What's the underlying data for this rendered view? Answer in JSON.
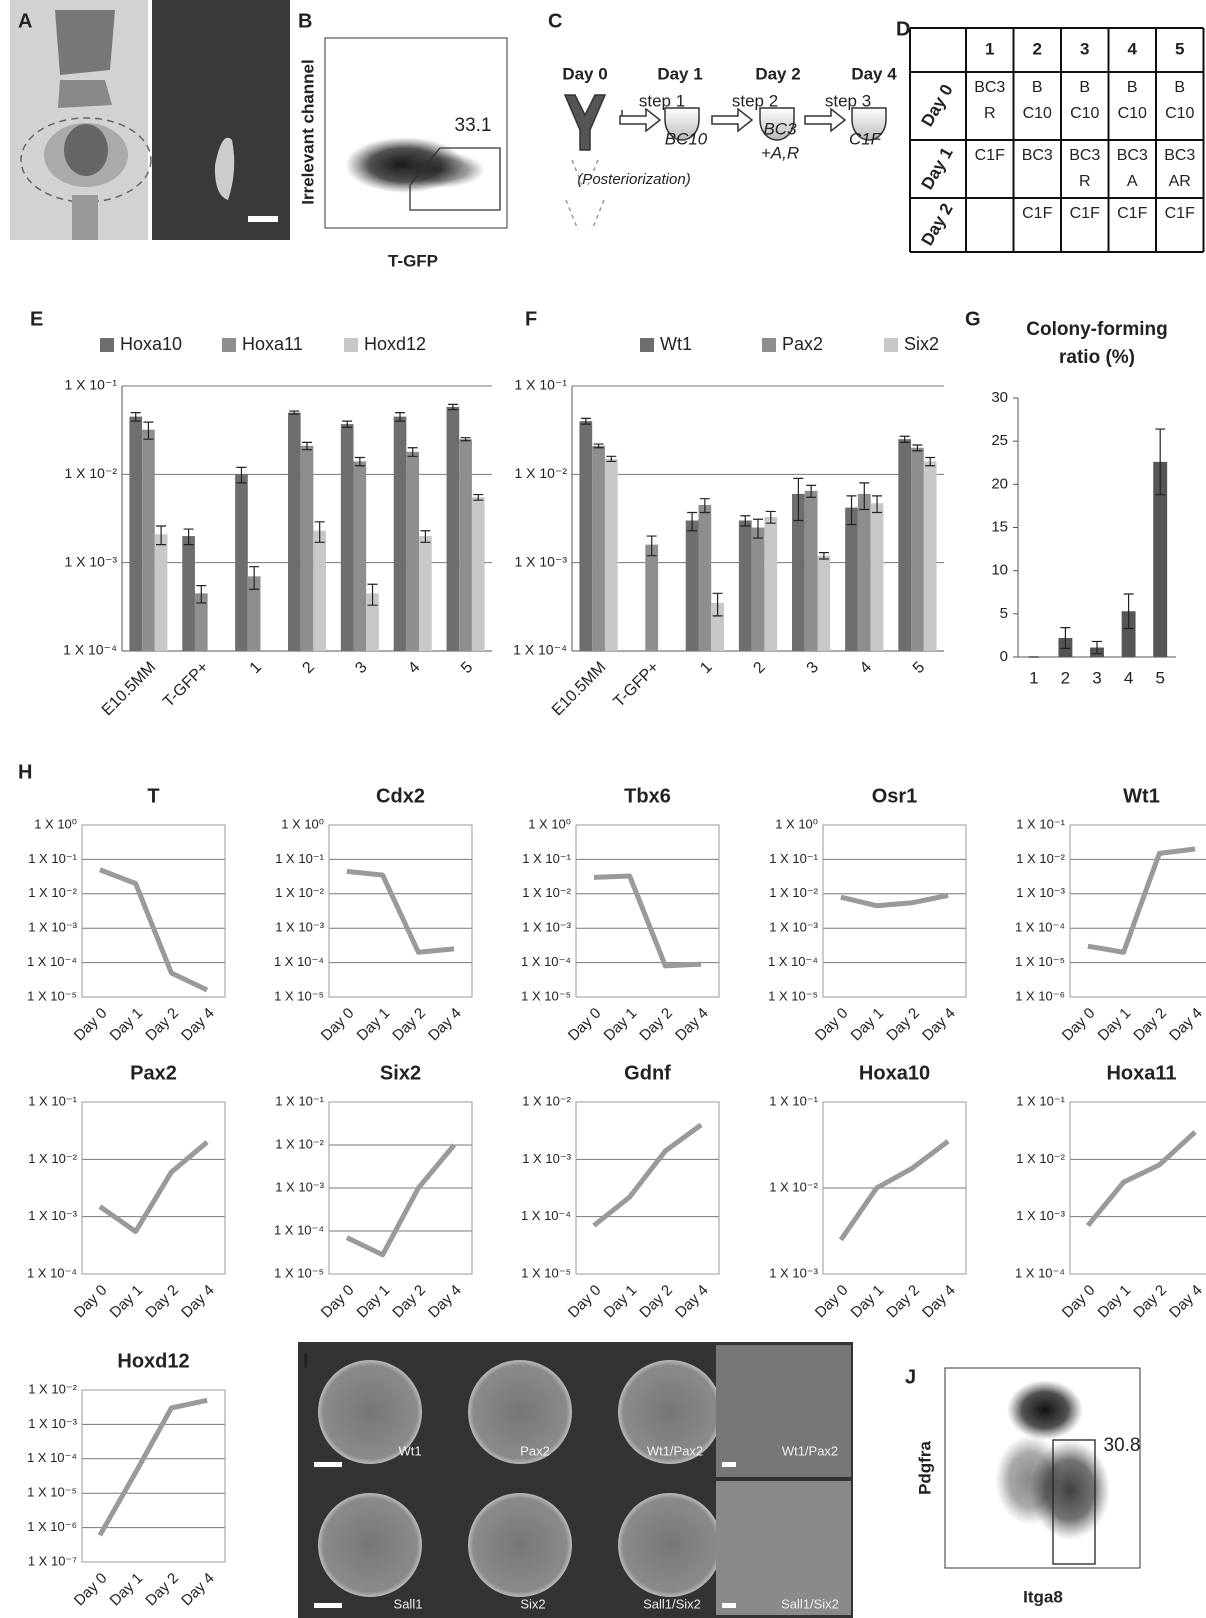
{
  "panel_labels": [
    "A",
    "B",
    "C",
    "D",
    "E",
    "F",
    "G",
    "H",
    "I",
    "J"
  ],
  "flow_b": {
    "y_label": "Irrelevant channel",
    "x_label": "T-GFP",
    "gate_value": 33.1
  },
  "protocol": {
    "days": [
      "Day 0",
      "Day 1",
      "Day 2",
      "Day 4"
    ],
    "steps": [
      "step 1",
      "step 2",
      "step 3"
    ],
    "media": [
      [
        "BC10"
      ],
      [
        "BC3",
        "+A,R"
      ],
      [
        "C1F"
      ]
    ],
    "note": "(Posteriorization)"
  },
  "table": {
    "header": [
      "1",
      "2",
      "3",
      "4",
      "5"
    ],
    "rows": [
      {
        "label": "Day 0",
        "cells": [
          [
            "BC3",
            "R"
          ],
          [
            "B",
            "C10"
          ],
          [
            "B",
            "C10"
          ],
          [
            "B",
            "C10"
          ],
          [
            "B",
            "C10"
          ]
        ]
      },
      {
        "label": "Day 1",
        "cells": [
          [
            "C1F"
          ],
          [
            "BC3"
          ],
          [
            "BC3",
            "R"
          ],
          [
            "BC3",
            "A"
          ],
          [
            "BC3",
            "AR"
          ]
        ]
      },
      {
        "label": "Day 2",
        "cells": [
          [],
          [
            "C1F"
          ],
          [
            "C1F"
          ],
          [
            "C1F"
          ],
          [
            "C1F"
          ]
        ]
      }
    ]
  },
  "chart_data": [
    {
      "type": "bar",
      "log_scale": true,
      "grid": true,
      "categories": [
        "E10.5MM",
        "T-GFP+",
        "1",
        "2",
        "3",
        "4",
        "5"
      ],
      "series": [
        {
          "name": "Hoxa10",
          "color": "#6e6e6e",
          "values": [
            0.045,
            0.002,
            0.01,
            0.05,
            0.037,
            0.045,
            0.058
          ],
          "errors": [
            0.005,
            0.0004,
            0.002,
            0.002,
            0.003,
            0.005,
            0.004
          ]
        },
        {
          "name": "Hoxa11",
          "color": "#8e8e8e",
          "values": [
            0.032,
            0.00045,
            0.0007,
            0.021,
            0.014,
            0.018,
            0.025
          ],
          "errors": [
            0.007,
            0.0001,
            0.0002,
            0.002,
            0.0015,
            0.002,
            0.001
          ]
        },
        {
          "name": "Hoxd12",
          "color": "#c8c8c8",
          "values": [
            0.0021,
            null,
            null,
            0.0023,
            0.00045,
            0.002,
            0.0055
          ],
          "errors": [
            0.0005,
            null,
            null,
            0.0006,
            0.00012,
            0.0003,
            0.0004
          ]
        }
      ],
      "ylim": [
        0.0001,
        0.1
      ],
      "yticks": [
        {
          "value": 0.0001,
          "label": "1 X 10⁻⁴"
        },
        {
          "value": 0.001,
          "label": "1 X 10⁻³"
        },
        {
          "value": 0.01,
          "label": "1 X 10⁻²"
        },
        {
          "value": 0.1,
          "label": "1 X 10⁻¹"
        }
      ]
    },
    {
      "type": "bar",
      "log_scale": true,
      "grid": true,
      "categories": [
        "E10.5MM",
        "T-GFP+",
        "1",
        "2",
        "3",
        "4",
        "5"
      ],
      "series": [
        {
          "name": "Wt1",
          "color": "#6e6e6e",
          "values": [
            0.04,
            null,
            0.003,
            0.003,
            0.006,
            0.0042,
            0.025
          ],
          "errors": [
            0.003,
            null,
            0.0007,
            0.0004,
            0.003,
            0.0015,
            0.002
          ]
        },
        {
          "name": "Pax2",
          "color": "#8e8e8e",
          "values": [
            0.021,
            0.0016,
            0.0045,
            0.0025,
            0.0065,
            0.006,
            0.02
          ],
          "errors": [
            0.001,
            0.0004,
            0.0008,
            0.0006,
            0.001,
            0.002,
            0.0015
          ]
        },
        {
          "name": "Six2",
          "color": "#c8c8c8",
          "values": [
            0.015,
            null,
            0.00035,
            0.0033,
            0.0012,
            0.0047,
            0.014
          ],
          "errors": [
            0.001,
            null,
            0.0001,
            0.0005,
            0.0001,
            0.001,
            0.0015
          ]
        }
      ],
      "ylim": [
        0.0001,
        0.1
      ],
      "yticks": [
        {
          "value": 0.0001,
          "label": "1 X 10⁻⁴"
        },
        {
          "value": 0.001,
          "label": "1 X 10⁻³"
        },
        {
          "value": 0.01,
          "label": "1 X 10⁻²"
        },
        {
          "value": 0.1,
          "label": "1 X 10⁻¹"
        }
      ]
    },
    {
      "type": "bar",
      "title": [
        "Colony-forming",
        "ratio (%)"
      ],
      "color": "#555555",
      "categories": [
        "1",
        "2",
        "3",
        "4",
        "5"
      ],
      "values": [
        0,
        2.2,
        1.1,
        5.3,
        22.6
      ],
      "errors": [
        0,
        1.2,
        0.7,
        2,
        3.8
      ],
      "ylim": [
        0,
        30
      ],
      "yticks": [
        0,
        5,
        10,
        15,
        20,
        25,
        30
      ],
      "grid": false
    },
    {
      "type": "line",
      "title": "T",
      "log_scale": true,
      "grid": true,
      "color": "#9a9a9a",
      "categories": [
        "Day 0",
        "Day 1",
        "Day 2",
        "Day 4"
      ],
      "values": [
        0.05,
        0.02,
        5e-05,
        1.6e-05
      ],
      "ylim": [
        1e-05,
        1
      ],
      "yticks": [
        {
          "value": 1e-05,
          "label": "1 X 10⁻⁵"
        },
        {
          "value": 0.0001,
          "label": "1 X 10⁻⁴"
        },
        {
          "value": 0.001,
          "label": "1 X 10⁻³"
        },
        {
          "value": 0.01,
          "label": "1 X 10⁻²"
        },
        {
          "value": 0.1,
          "label": "1 X 10⁻¹"
        },
        {
          "value": 1,
          "label": "1 X 10⁰"
        }
      ]
    },
    {
      "type": "line",
      "title": "Cdx2",
      "log_scale": true,
      "grid": true,
      "color": "#9a9a9a",
      "categories": [
        "Day 0",
        "Day 1",
        "Day 2",
        "Day 4"
      ],
      "values": [
        0.045,
        0.035,
        0.0002,
        0.00025
      ],
      "ylim": [
        1e-05,
        1
      ],
      "yticks": [
        {
          "value": 1e-05,
          "label": "1 X 10⁻⁵"
        },
        {
          "value": 0.0001,
          "label": "1 X 10⁻⁴"
        },
        {
          "value": 0.001,
          "label": "1 X 10⁻³"
        },
        {
          "value": 0.01,
          "label": "1 X 10⁻²"
        },
        {
          "value": 0.1,
          "label": "1 X 10⁻¹"
        },
        {
          "value": 1,
          "label": "1 X 10⁰"
        }
      ]
    },
    {
      "type": "line",
      "title": "Tbx6",
      "log_scale": true,
      "grid": true,
      "color": "#9a9a9a",
      "categories": [
        "Day 0",
        "Day 1",
        "Day 2",
        "Day 4"
      ],
      "values": [
        0.03,
        0.033,
        8e-05,
        9e-05
      ],
      "ylim": [
        1e-05,
        1
      ],
      "yticks": [
        {
          "value": 1e-05,
          "label": "1 X 10⁻⁵"
        },
        {
          "value": 0.0001,
          "label": "1 X 10⁻⁴"
        },
        {
          "value": 0.001,
          "label": "1 X 10⁻³"
        },
        {
          "value": 0.01,
          "label": "1 X 10⁻²"
        },
        {
          "value": 0.1,
          "label": "1 X 10⁻¹"
        },
        {
          "value": 1,
          "label": "1 X 10⁰"
        }
      ]
    },
    {
      "type": "line",
      "title": "Osr1",
      "log_scale": true,
      "grid": true,
      "color": "#9a9a9a",
      "categories": [
        "Day 0",
        "Day 1",
        "Day 2",
        "Day 4"
      ],
      "values": [
        0.008,
        0.0045,
        0.0055,
        0.009
      ],
      "ylim": [
        1e-05,
        1
      ],
      "yticks": [
        {
          "value": 1e-05,
          "label": "1 X 10⁻⁵"
        },
        {
          "value": 0.0001,
          "label": "1 X 10⁻⁴"
        },
        {
          "value": 0.001,
          "label": "1 X 10⁻³"
        },
        {
          "value": 0.01,
          "label": "1 X 10⁻²"
        },
        {
          "value": 0.1,
          "label": "1 X 10⁻¹"
        },
        {
          "value": 1,
          "label": "1 X 10⁰"
        }
      ]
    },
    {
      "type": "line",
      "title": "Wt1",
      "log_scale": true,
      "grid": true,
      "color": "#9a9a9a",
      "categories": [
        "Day 0",
        "Day 1",
        "Day 2",
        "Day 4"
      ],
      "values": [
        3e-05,
        2e-05,
        0.015,
        0.02
      ],
      "ylim": [
        1e-06,
        0.1
      ],
      "yticks": [
        {
          "value": 1e-06,
          "label": "1 X 10⁻⁶"
        },
        {
          "value": 1e-05,
          "label": "1 X 10⁻⁵"
        },
        {
          "value": 0.0001,
          "label": "1 X 10⁻⁴"
        },
        {
          "value": 0.001,
          "label": "1 X 10⁻³"
        },
        {
          "value": 0.01,
          "label": "1 X 10⁻²"
        },
        {
          "value": 0.1,
          "label": "1 X 10⁻¹"
        }
      ]
    },
    {
      "type": "line",
      "title": "Pax2",
      "log_scale": true,
      "grid": true,
      "color": "#9a9a9a",
      "categories": [
        "Day 0",
        "Day 1",
        "Day 2",
        "Day 4"
      ],
      "values": [
        0.0015,
        0.00055,
        0.006,
        0.02
      ],
      "ylim": [
        0.0001,
        0.1
      ],
      "yticks": [
        {
          "value": 0.0001,
          "label": "1 X 10⁻⁴"
        },
        {
          "value": 0.001,
          "label": "1 X 10⁻³"
        },
        {
          "value": 0.01,
          "label": "1 X 10⁻²"
        },
        {
          "value": 0.1,
          "label": "1 X 10⁻¹"
        }
      ]
    },
    {
      "type": "line",
      "title": "Six2",
      "log_scale": true,
      "grid": true,
      "color": "#9a9a9a",
      "categories": [
        "Day 0",
        "Day 1",
        "Day 2",
        "Day 4"
      ],
      "values": [
        7e-05,
        2.8e-05,
        0.001,
        0.01
      ],
      "ylim": [
        1e-05,
        0.1
      ],
      "yticks": [
        {
          "value": 1e-05,
          "label": "1 X 10⁻⁵"
        },
        {
          "value": 0.0001,
          "label": "1 X 10⁻⁴"
        },
        {
          "value": 0.001,
          "label": "1 X 10⁻³"
        },
        {
          "value": 0.01,
          "label": "1 X 10⁻²"
        },
        {
          "value": 0.1,
          "label": "1 X 10⁻¹"
        }
      ]
    },
    {
      "type": "line",
      "title": "Gdnf",
      "log_scale": true,
      "grid": true,
      "color": "#9a9a9a",
      "categories": [
        "Day 0",
        "Day 1",
        "Day 2",
        "Day 4"
      ],
      "values": [
        7e-05,
        0.00022,
        0.0014,
        0.004
      ],
      "ylim": [
        1e-05,
        0.01
      ],
      "yticks": [
        {
          "value": 1e-05,
          "label": "1 X 10⁻⁵"
        },
        {
          "value": 0.0001,
          "label": "1 X 10⁻⁴"
        },
        {
          "value": 0.001,
          "label": "1 X 10⁻³"
        },
        {
          "value": 0.01,
          "label": "1 X 10⁻²"
        }
      ]
    },
    {
      "type": "line",
      "title": "Hoxa10",
      "log_scale": true,
      "grid": true,
      "color": "#9a9a9a",
      "categories": [
        "Day 0",
        "Day 1",
        "Day 2",
        "Day 4"
      ],
      "values": [
        0.0025,
        0.01,
        0.017,
        0.035
      ],
      "ylim": [
        0.001,
        0.1
      ],
      "yticks": [
        {
          "value": 0.001,
          "label": "1 X 10⁻³"
        },
        {
          "value": 0.01,
          "label": "1 X 10⁻²"
        },
        {
          "value": 0.1,
          "label": "1 X 10⁻¹"
        }
      ]
    },
    {
      "type": "line",
      "title": "Hoxa11",
      "log_scale": true,
      "grid": true,
      "color": "#9a9a9a",
      "categories": [
        "Day 0",
        "Day 1",
        "Day 2",
        "Day 4"
      ],
      "values": [
        0.0007,
        0.004,
        0.008,
        0.03
      ],
      "ylim": [
        0.0001,
        0.1
      ],
      "yticks": [
        {
          "value": 0.0001,
          "label": "1 X 10⁻⁴"
        },
        {
          "value": 0.001,
          "label": "1 X 10⁻³"
        },
        {
          "value": 0.01,
          "label": "1 X 10⁻²"
        },
        {
          "value": 0.1,
          "label": "1 X 10⁻¹"
        }
      ]
    },
    {
      "type": "line",
      "title": "Hoxd12",
      "log_scale": true,
      "grid": true,
      "color": "#9a9a9a",
      "categories": [
        "Day 0",
        "Day 1",
        "Day 2",
        "Day 4"
      ],
      "values": [
        6e-07,
        4e-05,
        0.003,
        0.005
      ],
      "ylim": [
        1e-07,
        0.01
      ],
      "yticks": [
        {
          "value": 1e-07,
          "label": "1 X 10⁻⁷"
        },
        {
          "value": 1e-06,
          "label": "1 X 10⁻⁶"
        },
        {
          "value": 1e-05,
          "label": "1 X 10⁻⁵"
        },
        {
          "value": 0.0001,
          "label": "1 X 10⁻⁴"
        },
        {
          "value": 0.001,
          "label": "1 X 10⁻³"
        },
        {
          "value": 0.01,
          "label": "1 X 10⁻²"
        }
      ]
    }
  ],
  "images_i": {
    "labels": [
      "Wt1",
      "Pax2",
      "Wt1/Pax2",
      "Wt1/Pax2",
      "Sall1",
      "Six2",
      "Sall1/Six2",
      "Sall1/Six2"
    ]
  },
  "flow_j": {
    "y_label": "Pdgfra",
    "x_label": "Itga8",
    "gate_value": 30.8
  }
}
